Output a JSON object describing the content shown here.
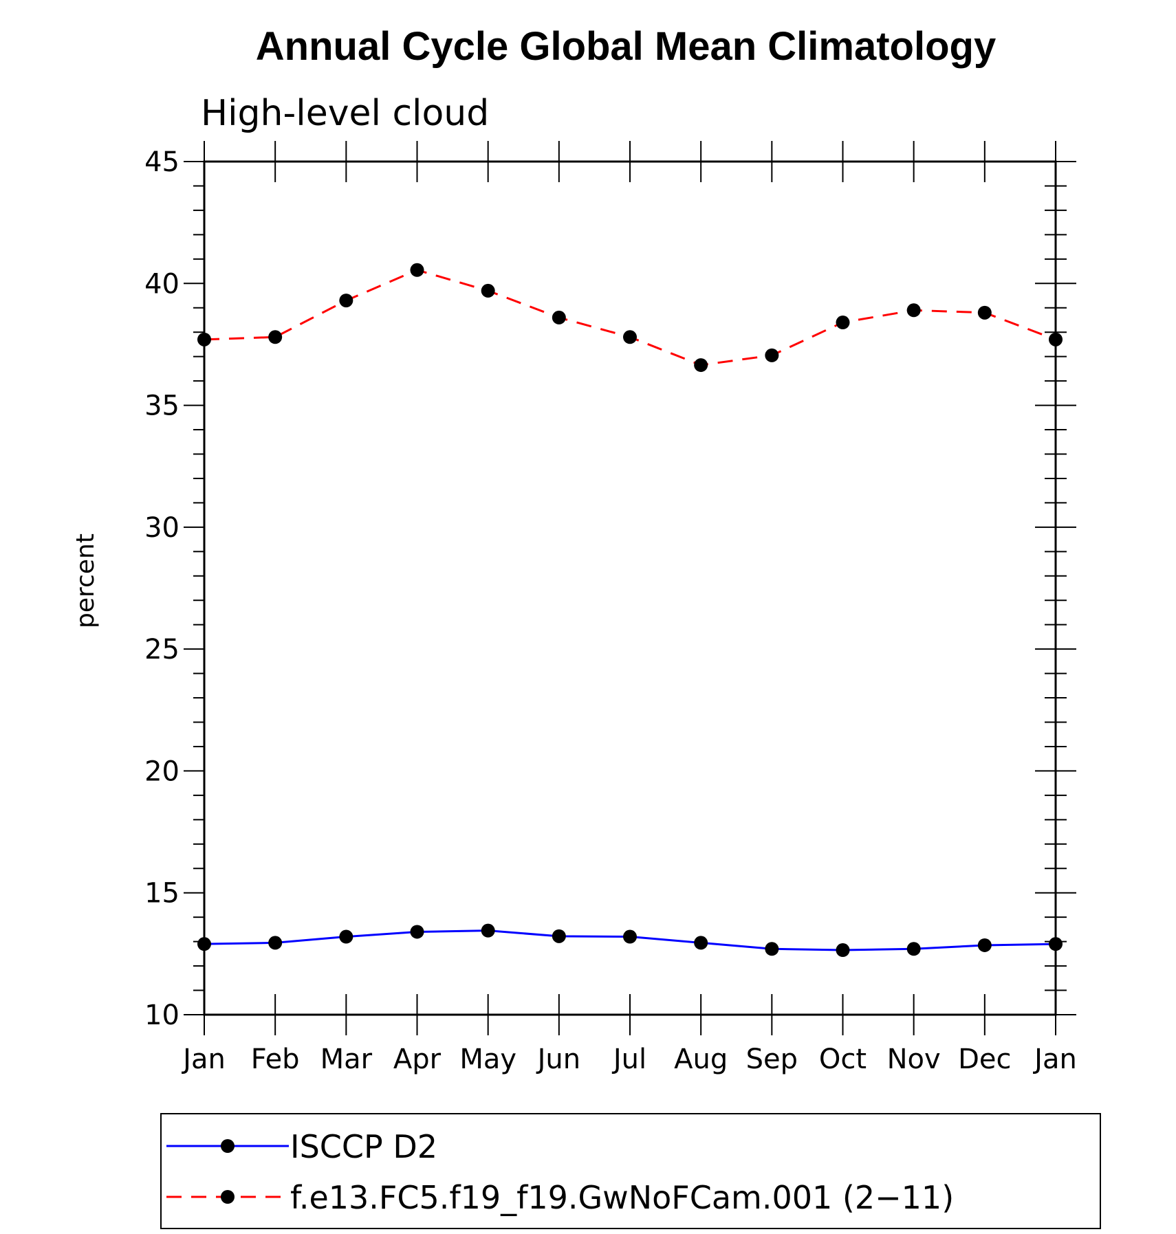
{
  "chart_data": {
    "type": "line",
    "title": "Annual Cycle Global Mean Climatology",
    "subtitle": "High-level cloud",
    "xlabel": "",
    "ylabel": "percent",
    "ylim": [
      10,
      45
    ],
    "y_ticks": [
      "10",
      "15",
      "20",
      "25",
      "30",
      "35",
      "40",
      "45"
    ],
    "categories": [
      "Jan",
      "Feb",
      "Mar",
      "Apr",
      "May",
      "Jun",
      "Jul",
      "Aug",
      "Sep",
      "Oct",
      "Nov",
      "Dec",
      "Jan"
    ],
    "legend_position": "bottom",
    "series": [
      {
        "name": "ISCCP D2",
        "color": "#0000ff",
        "style": "solid",
        "marker": "filled-circle",
        "values": [
          12.9,
          12.95,
          13.2,
          13.4,
          13.45,
          13.22,
          13.2,
          12.95,
          12.7,
          12.65,
          12.7,
          12.85,
          12.9
        ]
      },
      {
        "name": "f.e13.FC5.f19_f19.GwNoFCam.001 (2−11)",
        "color": "#ff0000",
        "style": "dashed",
        "marker": "filled-circle",
        "values": [
          37.7,
          37.8,
          39.3,
          40.55,
          39.7,
          38.6,
          37.8,
          36.65,
          37.05,
          38.4,
          38.9,
          38.8,
          37.7
        ]
      }
    ]
  }
}
